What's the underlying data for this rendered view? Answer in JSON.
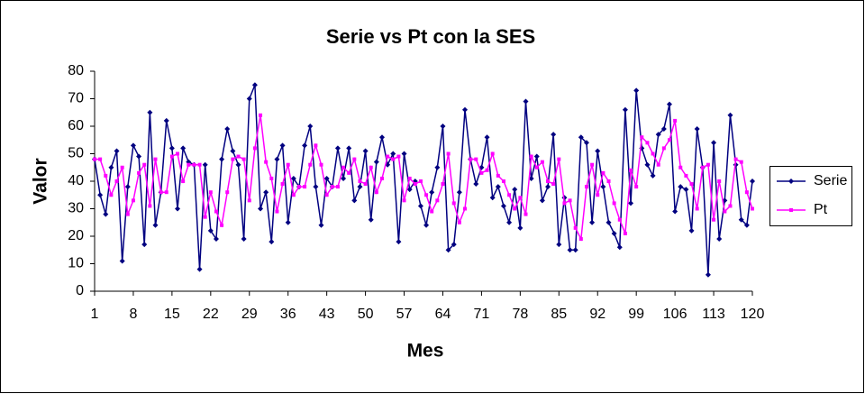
{
  "chart_data": {
    "type": "line",
    "title": "Serie vs Pt con la SES",
    "x_label": "Mes",
    "y_label": "Valor",
    "x": [
      1,
      2,
      3,
      4,
      5,
      6,
      7,
      8,
      9,
      10,
      11,
      12,
      13,
      14,
      15,
      16,
      17,
      18,
      19,
      20,
      21,
      22,
      23,
      24,
      25,
      26,
      27,
      28,
      29,
      30,
      31,
      32,
      33,
      34,
      35,
      36,
      37,
      38,
      39,
      40,
      41,
      42,
      43,
      44,
      45,
      46,
      47,
      48,
      49,
      50,
      51,
      52,
      53,
      54,
      55,
      56,
      57,
      58,
      59,
      60,
      61,
      62,
      63,
      64,
      65,
      66,
      67,
      68,
      69,
      70,
      71,
      72,
      73,
      74,
      75,
      76,
      77,
      78,
      79,
      80,
      81,
      82,
      83,
      84,
      85,
      86,
      87,
      88,
      89,
      90,
      91,
      92,
      93,
      94,
      95,
      96,
      97,
      98,
      99,
      100,
      101,
      102,
      103,
      104,
      105,
      106,
      107,
      108,
      109,
      110,
      111,
      112,
      113,
      114,
      115,
      116,
      117,
      118,
      119,
      120
    ],
    "xlim": [
      1,
      120
    ],
    "xticks": [
      1,
      8,
      15,
      22,
      29,
      36,
      43,
      50,
      57,
      64,
      71,
      78,
      85,
      92,
      99,
      106,
      113,
      120
    ],
    "ylim": [
      0,
      80
    ],
    "yticks": [
      0,
      10,
      20,
      30,
      40,
      50,
      60,
      70,
      80
    ],
    "grid": false,
    "legend_position": "right",
    "series": [
      {
        "name": "Serie",
        "color": "#000080",
        "marker": "diamond",
        "values": [
          48,
          35,
          28,
          45,
          51,
          11,
          38,
          53,
          49,
          17,
          65,
          24,
          36,
          62,
          52,
          30,
          52,
          47,
          46,
          8,
          46,
          22,
          19,
          48,
          59,
          51,
          46,
          19,
          70,
          75,
          30,
          36,
          18,
          48,
          53,
          25,
          41,
          38,
          53,
          60,
          38,
          24,
          41,
          38,
          52,
          41,
          52,
          33,
          38,
          51,
          26,
          47,
          56,
          46,
          50,
          18,
          50,
          37,
          40,
          31,
          24,
          36,
          45,
          60,
          15,
          17,
          36,
          66,
          48,
          39,
          45,
          56,
          34,
          38,
          31,
          25,
          37,
          23,
          69,
          41,
          49,
          33,
          38,
          57,
          17,
          34,
          15,
          15,
          56,
          54,
          25,
          51,
          38,
          25,
          21,
          16,
          66,
          32,
          73,
          52,
          46,
          42,
          57,
          59,
          68,
          29,
          38,
          37,
          22,
          59,
          45,
          6,
          54,
          19,
          33,
          64,
          46,
          26,
          24,
          40
        ]
      },
      {
        "name": "Pt",
        "color": "#ff00ff",
        "marker": "square",
        "values": [
          48,
          48,
          42,
          35,
          40,
          45,
          28,
          33,
          43,
          46,
          31,
          48,
          36,
          36,
          49,
          50,
          40,
          46,
          46,
          46,
          27,
          36,
          29,
          24,
          36,
          48,
          49,
          48,
          33,
          52,
          64,
          47,
          41,
          29,
          39,
          46,
          35,
          38,
          38,
          46,
          53,
          46,
          35,
          38,
          38,
          45,
          43,
          48,
          40,
          39,
          45,
          36,
          41,
          49,
          48,
          49,
          33,
          41,
          39,
          40,
          35,
          29,
          33,
          39,
          50,
          32,
          25,
          30,
          48,
          48,
          43,
          44,
          50,
          42,
          40,
          35,
          30,
          34,
          28,
          49,
          45,
          47,
          40,
          39,
          48,
          32,
          33,
          23,
          19,
          38,
          46,
          35,
          43,
          40,
          32,
          26,
          21,
          44,
          38,
          56,
          54,
          50,
          46,
          52,
          55,
          62,
          45,
          42,
          39,
          30,
          45,
          46,
          26,
          40,
          29,
          31,
          48,
          47,
          36,
          30
        ]
      }
    ]
  }
}
